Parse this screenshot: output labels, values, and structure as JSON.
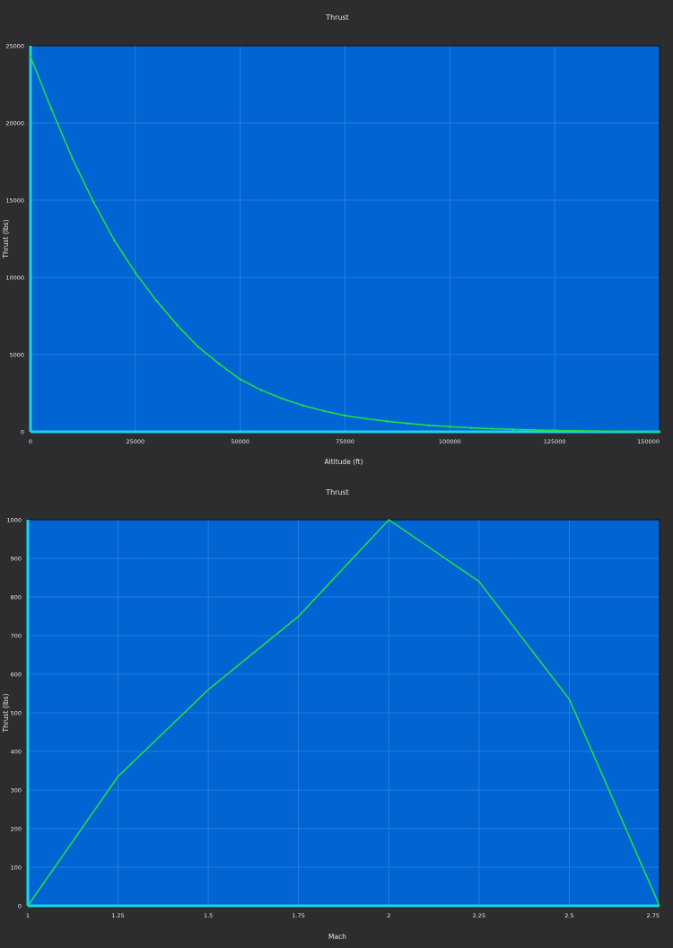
{
  "colors": {
    "background": "#2d2d30",
    "plot_background": "#0064d2",
    "grid": "#2f86e6",
    "axis": "#19d3ef",
    "series": "#22dd44"
  },
  "chart_data": [
    {
      "type": "line",
      "title": "Thrust",
      "xlabel": "Altitude (ft)",
      "ylabel": "Thrust (lbs)",
      "xlim": [
        0,
        150000
      ],
      "ylim": [
        0,
        25000
      ],
      "xticks": [
        0,
        25000,
        50000,
        75000,
        100000,
        125000,
        150000
      ],
      "yticks": [
        0,
        5000,
        10000,
        15000,
        20000,
        25000
      ],
      "xtick_labels": [
        "0",
        "25000",
        "50000",
        "75000",
        "100000",
        "125000",
        "150000"
      ],
      "ytick_labels": [
        "0",
        "5000",
        "10000",
        "15000",
        "20000",
        "25000"
      ],
      "grid": true,
      "markers": true,
      "series": [
        {
          "x": [
            0,
            5000,
            10000,
            15000,
            20000,
            25000,
            30000,
            35000,
            40000,
            45000,
            50000,
            55000,
            60000,
            65000,
            70000,
            75000,
            80000,
            85000,
            90000,
            95000,
            100000,
            105000,
            110000,
            115000,
            120000,
            125000,
            130000,
            135000,
            140000,
            145000,
            150000
          ],
          "y": [
            24300,
            20900,
            17700,
            14900,
            12400,
            10300,
            8500,
            6900,
            5500,
            4400,
            3400,
            2700,
            2150,
            1700,
            1350,
            1050,
            850,
            680,
            540,
            420,
            330,
            260,
            200,
            160,
            120,
            90,
            70,
            50,
            35,
            25,
            15
          ]
        }
      ]
    },
    {
      "type": "line",
      "title": "Thrust",
      "xlabel": "Mach",
      "ylabel": "Thrust (lbs)",
      "xlim": [
        1,
        2.75
      ],
      "ylim": [
        0,
        1000
      ],
      "xticks": [
        1,
        1.25,
        1.5,
        1.75,
        2,
        2.25,
        2.5,
        2.75
      ],
      "yticks": [
        0,
        100,
        200,
        300,
        400,
        500,
        600,
        700,
        800,
        900,
        1000
      ],
      "xtick_labels": [
        "1",
        "1.25",
        "1.5",
        "1.75",
        "2",
        "2.25",
        "2.5",
        "2.75"
      ],
      "ytick_labels": [
        "0",
        "100",
        "200",
        "300",
        "400",
        "500",
        "600",
        "700",
        "800",
        "900",
        "1000"
      ],
      "grid": true,
      "markers": false,
      "series": [
        {
          "x": [
            1,
            1.25,
            1.5,
            1.75,
            2,
            2.25,
            2.5,
            2.75
          ],
          "y": [
            0,
            335,
            560,
            750,
            1000,
            840,
            535,
            0
          ]
        }
      ]
    }
  ]
}
